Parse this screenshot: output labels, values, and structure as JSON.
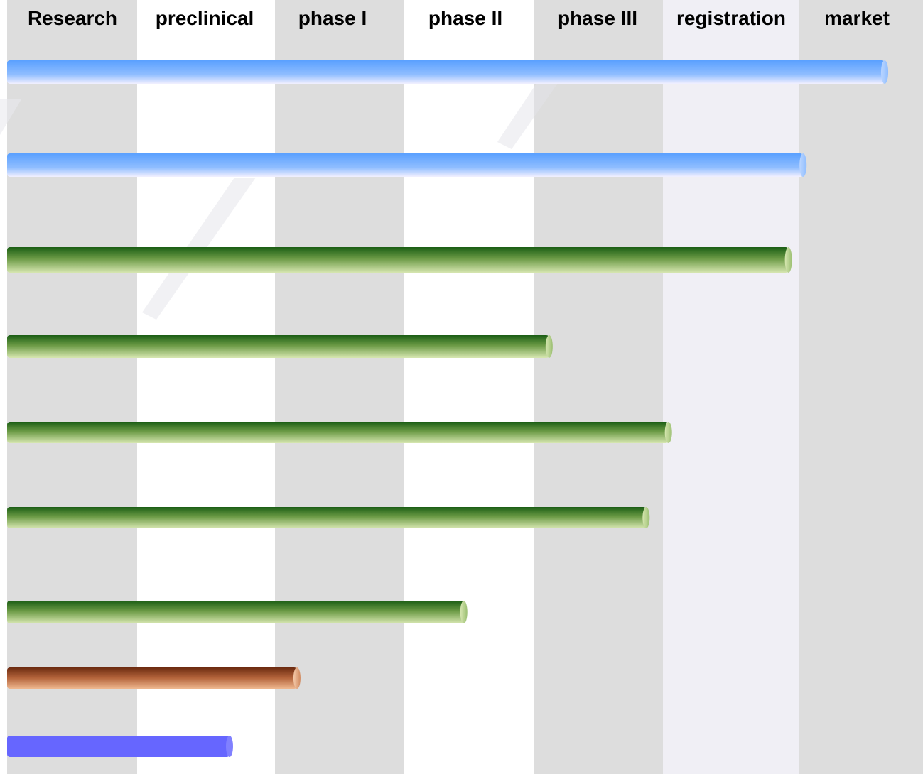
{
  "chart_data": {
    "type": "bar",
    "orientation": "horizontal",
    "stages": [
      "Research",
      "preclinical",
      "phase I",
      "phase II",
      "phase III",
      "registration",
      "market"
    ],
    "bars": [
      {
        "end_stage_position": 6.69,
        "color": "blue-gradient"
      },
      {
        "end_stage_position": 6.03,
        "color": "blue-gradient"
      },
      {
        "end_stage_position": 5.92,
        "color": "green-gradient"
      },
      {
        "end_stage_position": 4.12,
        "color": "green-gradient"
      },
      {
        "end_stage_position": 5.04,
        "color": "green-gradient"
      },
      {
        "end_stage_position": 4.87,
        "color": "green-gradient"
      },
      {
        "end_stage_position": 3.46,
        "color": "green-gradient"
      },
      {
        "end_stage_position": 2.17,
        "color": "brown-gradient"
      },
      {
        "end_stage_position": 1.67,
        "color": "solid-purple"
      }
    ],
    "xlim": [
      0,
      7
    ],
    "grid": "alternating column bands",
    "legend": "none"
  },
  "colors": {
    "band_gray": "#dddddd",
    "band_light": "#f0eff5",
    "band_white": "#ffffff",
    "blue_top": "#5aa0ff",
    "blue_bottom": "#e6ecff",
    "green_top": "#1b5e15",
    "green_bottom": "#cde0a6",
    "brown_top": "#6b2a10",
    "brown_bottom": "#ebb08a",
    "purple": "#6666ff"
  }
}
